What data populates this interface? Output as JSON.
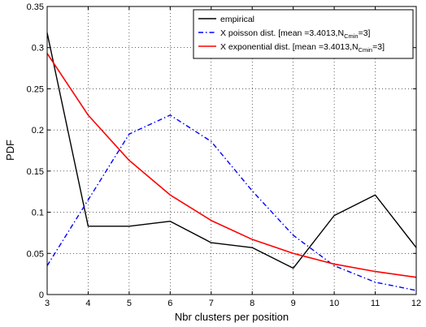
{
  "chart_data": {
    "type": "line",
    "xlabel": "Nbr clusters per position",
    "ylabel": "PDF",
    "xlim": [
      3,
      12
    ],
    "ylim": [
      0,
      0.35
    ],
    "x_ticks": [
      3,
      4,
      5,
      6,
      7,
      8,
      9,
      10,
      11,
      12
    ],
    "y_ticks": [
      0,
      0.05,
      0.1,
      0.15,
      0.2,
      0.25,
      0.3,
      0.35
    ],
    "y_tick_labels": [
      "0",
      "0.05",
      "0.1",
      "0.15",
      "0.2",
      "0.25",
      "0.3",
      "0.35"
    ],
    "grid": true,
    "legend_position": "top-right",
    "series": [
      {
        "name": "empirical",
        "color": "#000000",
        "style": "solid",
        "x": [
          3,
          4,
          5,
          6,
          7,
          8,
          9,
          10,
          11,
          12
        ],
        "values": [
          0.318,
          0.083,
          0.083,
          0.089,
          0.063,
          0.057,
          0.032,
          0.096,
          0.121,
          0.057
        ]
      },
      {
        "name": "X poisson dist. [mean =3.4013,N",
        "name_sub": "Cmin",
        "name_suffix": "=3]",
        "color": "#0000ff",
        "style": "dashdot",
        "x": [
          3,
          4,
          5,
          6,
          7,
          8,
          9,
          10,
          11,
          12
        ],
        "values": [
          0.035,
          0.115,
          0.195,
          0.218,
          0.186,
          0.126,
          0.072,
          0.035,
          0.015,
          0.005
        ]
      },
      {
        "name": "X exponential dist. [mean =3.4013,N",
        "name_sub": "Cmin",
        "name_suffix": "=3]",
        "color": "#ff0000",
        "style": "solid",
        "x": [
          3,
          4,
          5,
          6,
          7,
          8,
          9,
          10,
          11,
          12
        ],
        "values": [
          0.293,
          0.218,
          0.163,
          0.121,
          0.09,
          0.067,
          0.05,
          0.037,
          0.028,
          0.021
        ]
      }
    ]
  }
}
